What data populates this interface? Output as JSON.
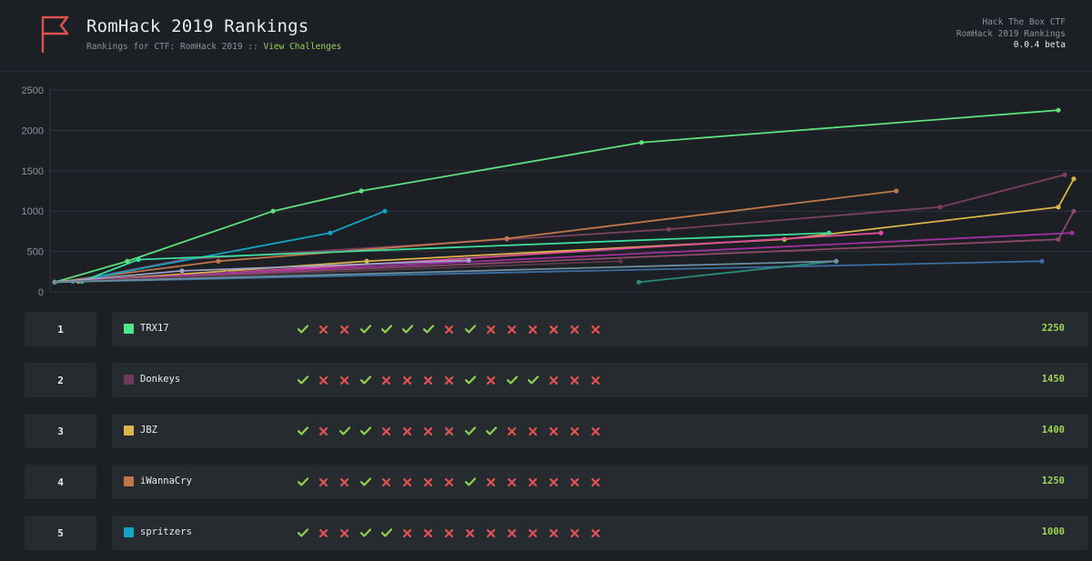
{
  "header": {
    "title": "RomHack 2019 Rankings",
    "subtitle_prefix": "Rankings for CTF: RomHack 2019 ::",
    "link_label": "View Challenges",
    "meta_line1": "Hack The Box CTF",
    "meta_line2": "RomHack 2019 Rankings",
    "version": "0.0.4 beta",
    "icon": "flag-icon",
    "accent_color": "#e05252"
  },
  "chart_data": {
    "type": "line",
    "y_ticks": [
      "2500",
      "2000",
      "1500",
      "1000",
      "500",
      "0"
    ],
    "ylim": [
      0,
      2500
    ],
    "grid": true,
    "series": [
      {
        "color": "#5ee07c",
        "points": [
          [
            60,
            120
          ],
          [
            140,
            380
          ],
          [
            300,
            1000
          ],
          [
            397,
            1250
          ],
          [
            705,
            1850
          ],
          [
            1163,
            2250
          ]
        ]
      },
      {
        "color": "#7a4060",
        "points": [
          [
            60,
            120
          ],
          [
            80,
            130
          ],
          [
            200,
            400
          ],
          [
            557,
            650
          ],
          [
            735,
            775
          ],
          [
            1033,
            1050
          ],
          [
            1170,
            1450
          ]
        ]
      },
      {
        "color": "#d9b54a",
        "points": [
          [
            60,
            120
          ],
          [
            86,
            130
          ],
          [
            403,
            380
          ],
          [
            862,
            650
          ],
          [
            1163,
            1050
          ],
          [
            1180,
            1400
          ]
        ]
      },
      {
        "color": "#c0784a",
        "points": [
          [
            60,
            120
          ],
          [
            240,
            380
          ],
          [
            557,
            660
          ],
          [
            985,
            1250
          ]
        ]
      },
      {
        "color": "#12a3c5",
        "points": [
          [
            60,
            120
          ],
          [
            80,
            130
          ],
          [
            363,
            730
          ],
          [
            423,
            1000
          ]
        ]
      },
      {
        "color": "#3ddc9c",
        "points": [
          [
            60,
            120
          ],
          [
            90,
            130
          ],
          [
            152,
            400
          ],
          [
            911,
            730
          ]
        ]
      },
      {
        "color": "#e0509a",
        "points": [
          [
            60,
            120
          ],
          [
            200,
            200
          ],
          [
            968,
            730
          ]
        ]
      },
      {
        "color": "#a030a0",
        "points": [
          [
            60,
            120
          ],
          [
            250,
            230
          ],
          [
            1178,
            730
          ]
        ]
      },
      {
        "color": "#8a4a6a",
        "points": [
          [
            60,
            120
          ],
          [
            300,
            240
          ],
          [
            1163,
            650
          ],
          [
            1180,
            1000
          ]
        ]
      },
      {
        "color": "#a0a0c8",
        "points": [
          [
            60,
            120
          ],
          [
            200,
            260
          ],
          [
            515,
            390
          ]
        ]
      },
      {
        "color": "#5a3a4a",
        "points": [
          [
            60,
            120
          ],
          [
            682,
            380
          ]
        ]
      },
      {
        "color": "#3a6ea0",
        "points": [
          [
            60,
            120
          ],
          [
            1145,
            380
          ]
        ]
      },
      {
        "color": "#2a8a7a",
        "points": [
          [
            702,
            120
          ],
          [
            919,
            380
          ]
        ]
      },
      {
        "color": "#6a8ea0",
        "points": [
          [
            60,
            120
          ],
          [
            919,
            380
          ]
        ]
      }
    ]
  },
  "rows": [
    {
      "rank": "1",
      "name": "TRX17",
      "color": "#4ee88c",
      "score": "2250",
      "chal": [
        "check",
        "cross",
        "cross",
        "check",
        "check",
        "check",
        "check",
        "cross",
        "check",
        "cross",
        "cross",
        "cross",
        "cross",
        "cross",
        "cross"
      ]
    },
    {
      "rank": "2",
      "name": "Donkeys",
      "color": "#6b3a5a",
      "score": "1450",
      "chal": [
        "check",
        "cross",
        "cross",
        "check",
        "cross",
        "cross",
        "cross",
        "cross",
        "check",
        "cross",
        "check",
        "check",
        "cross",
        "cross",
        "cross"
      ]
    },
    {
      "rank": "3",
      "name": "JBZ",
      "color": "#d9b54a",
      "score": "1400",
      "chal": [
        "check",
        "cross",
        "check",
        "check",
        "cross",
        "cross",
        "cross",
        "cross",
        "check",
        "check",
        "cross",
        "cross",
        "cross",
        "cross",
        "cross"
      ]
    },
    {
      "rank": "4",
      "name": "iWannaCry",
      "color": "#c0784a",
      "score": "1250",
      "chal": [
        "check",
        "cross",
        "cross",
        "check",
        "cross",
        "cross",
        "cross",
        "cross",
        "check",
        "cross",
        "cross",
        "cross",
        "cross",
        "cross",
        "cross"
      ]
    },
    {
      "rank": "5",
      "name": "spritzers",
      "color": "#12a3c5",
      "score": "1000",
      "chal": [
        "check",
        "cross",
        "cross",
        "check",
        "check",
        "cross",
        "cross",
        "cross",
        "cross",
        "cross",
        "cross",
        "cross",
        "cross",
        "cross",
        "cross"
      ]
    }
  ],
  "icons": {
    "solved": "check-icon",
    "unsolved": "cross-icon"
  },
  "colors": {
    "solved": "#8fd14f",
    "unsolved": "#e05252",
    "score": "#9fd356"
  }
}
